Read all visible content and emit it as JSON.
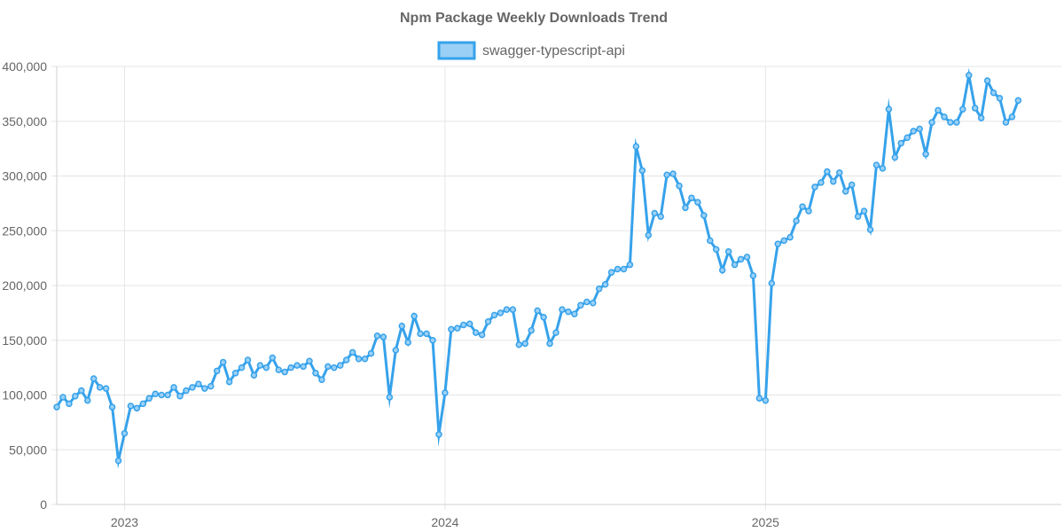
{
  "chart_data": {
    "type": "line",
    "title": "Npm Package Weekly Downloads Trend",
    "xlabel": "",
    "ylabel": "",
    "ylim": [
      0,
      400000
    ],
    "y_ticks": [
      0,
      50000,
      100000,
      150000,
      200000,
      250000,
      300000,
      350000,
      400000
    ],
    "y_tick_labels": [
      "0",
      "50,000",
      "100,000",
      "150,000",
      "200,000",
      "250,000",
      "300,000",
      "350,000",
      "400,000"
    ],
    "x_range_weeks": [
      0,
      163
    ],
    "x_ticks": [
      {
        "label": "2023",
        "week": 11
      },
      {
        "label": "2024",
        "week": 63
      },
      {
        "label": "2025",
        "week": 115
      }
    ],
    "grid": true,
    "legend_position": "top-center",
    "series": [
      {
        "name": "swagger-typescript-api",
        "color": "#36a2eb",
        "fill_color": "#9ad0f5",
        "values": [
          89000,
          98000,
          92000,
          99000,
          104000,
          95000,
          115000,
          107000,
          106000,
          89000,
          40000,
          65000,
          90000,
          88000,
          92000,
          97000,
          101000,
          100000,
          100000,
          107000,
          99000,
          104000,
          107000,
          110000,
          106000,
          108000,
          122000,
          130000,
          112000,
          120000,
          125000,
          132000,
          118000,
          127000,
          125000,
          134000,
          123000,
          121000,
          125000,
          127000,
          126000,
          131000,
          120000,
          114000,
          126000,
          125000,
          127000,
          132000,
          139000,
          133000,
          133000,
          138000,
          154000,
          153000,
          98000,
          141000,
          163000,
          148000,
          172000,
          156000,
          156000,
          150000,
          64000,
          102000,
          160000,
          161000,
          164000,
          165000,
          157000,
          155000,
          167000,
          173000,
          175000,
          178000,
          178000,
          146000,
          147000,
          159000,
          177000,
          171000,
          147000,
          157000,
          178000,
          176000,
          174000,
          182000,
          185000,
          184000,
          197000,
          201000,
          212000,
          215000,
          215000,
          219000,
          327000,
          305000,
          246000,
          266000,
          263000,
          301000,
          302000,
          291000,
          271000,
          280000,
          276000,
          264000,
          241000,
          233000,
          214000,
          231000,
          219000,
          224000,
          226000,
          209000,
          97000,
          95000,
          202000,
          238000,
          241000,
          244000,
          259000,
          272000,
          268000,
          290000,
          294000,
          304000,
          295000,
          303000,
          286000,
          292000,
          263000,
          268000,
          251000,
          310000,
          307000,
          361000,
          317000,
          330000,
          335000,
          341000,
          343000,
          320000,
          349000,
          360000,
          354000,
          349000,
          349000,
          361000,
          392000,
          362000,
          353000,
          387000,
          376000,
          371000,
          349000,
          354000,
          369000
        ]
      }
    ]
  }
}
